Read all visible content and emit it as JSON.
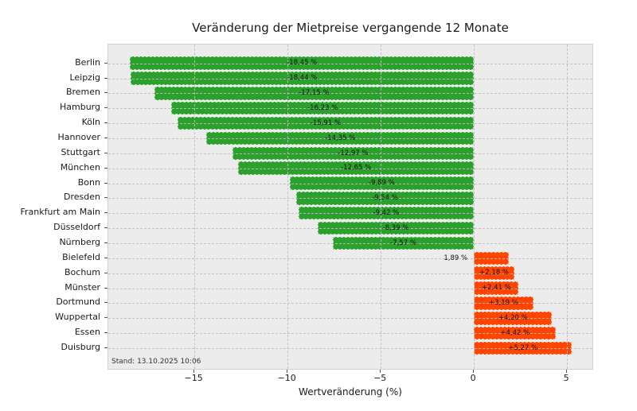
{
  "chart_data": {
    "type": "bar",
    "orientation": "horizontal",
    "title": "Veränderung der Mietpreise vergangende 12 Monate",
    "xlabel": "Wertveränderung (%)",
    "stand_note": "Stand: 13.10.2025 10:06",
    "xlim": [
      -19.62,
      6.45
    ],
    "xticks": [
      {
        "value": -15,
        "label": "−15"
      },
      {
        "value": -10,
        "label": "−10"
      },
      {
        "value": -5,
        "label": "−5"
      },
      {
        "value": 0,
        "label": "0"
      },
      {
        "value": 5,
        "label": "5"
      }
    ],
    "grid": "dashed",
    "legend": "none",
    "colors": {
      "negative_bar": "#2ca02c",
      "positive_bar": "#ff4500",
      "plot_background": "#ececec",
      "figure_background": "#ffffff"
    },
    "items": [
      {
        "city": "Berlin",
        "value": -18.45,
        "label": "-18,45 %",
        "label_outside": false
      },
      {
        "city": "Leipzig",
        "value": -18.44,
        "label": "-18,44 %",
        "label_outside": false
      },
      {
        "city": "Bremen",
        "value": -17.15,
        "label": "-17,15 %",
        "label_outside": false
      },
      {
        "city": "Hamburg",
        "value": -16.23,
        "label": "-16,23 %",
        "label_outside": false
      },
      {
        "city": "Köln",
        "value": -15.91,
        "label": "-15,91 %",
        "label_outside": false
      },
      {
        "city": "Hannover",
        "value": -14.35,
        "label": "-14,35 %",
        "label_outside": false
      },
      {
        "city": "Stuttgart",
        "value": -12.97,
        "label": "-12,97 %",
        "label_outside": false
      },
      {
        "city": "München",
        "value": -12.65,
        "label": "-12,65 %",
        "label_outside": false
      },
      {
        "city": "Bonn",
        "value": -9.89,
        "label": "-9,89 %",
        "label_outside": false
      },
      {
        "city": "Dresden",
        "value": -9.54,
        "label": "-9,54 %",
        "label_outside": false
      },
      {
        "city": "Frankfurt am Main",
        "value": -9.42,
        "label": "-9,42 %",
        "label_outside": false
      },
      {
        "city": "Düsseldorf",
        "value": -8.39,
        "label": "-8,39 %",
        "label_outside": false
      },
      {
        "city": "Nürnberg",
        "value": -7.57,
        "label": "-7,57 %",
        "label_outside": false
      },
      {
        "city": "Bielefeld",
        "value": 1.89,
        "label": "1,89 %",
        "label_outside": true
      },
      {
        "city": "Bochum",
        "value": 2.18,
        "label": "+2,18 %",
        "label_outside": false
      },
      {
        "city": "Münster",
        "value": 2.41,
        "label": "+2,41 %",
        "label_outside": false
      },
      {
        "city": "Dortmund",
        "value": 3.19,
        "label": "+3,19 %",
        "label_outside": false
      },
      {
        "city": "Wuppertal",
        "value": 4.2,
        "label": "+4,20 %",
        "label_outside": false
      },
      {
        "city": "Essen",
        "value": 4.42,
        "label": "+4,42 %",
        "label_outside": false
      },
      {
        "city": "Duisburg",
        "value": 5.27,
        "label": "+5,27 %",
        "label_outside": false
      }
    ]
  }
}
